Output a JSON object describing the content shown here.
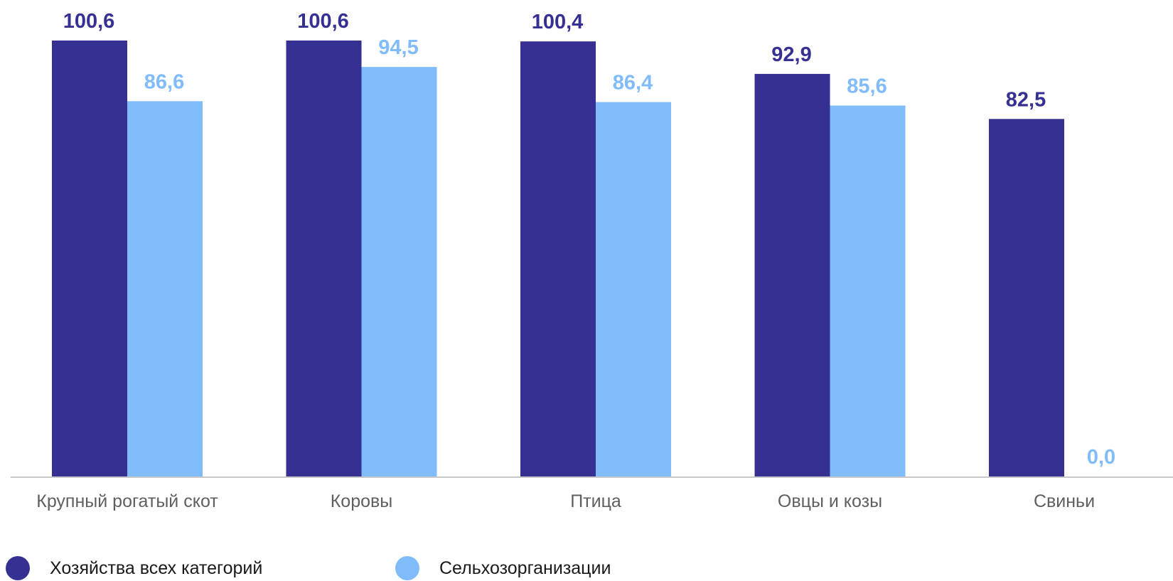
{
  "chart_data": {
    "type": "bar",
    "categories": [
      "Крупный рогатый скот",
      "Коровы",
      "Птица",
      "Овцы и козы",
      "Свиньи"
    ],
    "series": [
      {
        "name": "Хозяйства всех категорий",
        "values": [
          100.6,
          100.6,
          100.4,
          92.9,
          82.5
        ],
        "labels": [
          "100,6",
          "100,6",
          "100,4",
          "92,9",
          "82,5"
        ],
        "color": "#363093"
      },
      {
        "name": "Сельхозорганизации",
        "values": [
          86.6,
          94.5,
          86.4,
          85.6,
          0.0
        ],
        "labels": [
          "86,6",
          "94,5",
          "86,4",
          "85,6",
          "0,0"
        ],
        "color": "#80bcfa"
      }
    ],
    "title": "",
    "xlabel": "",
    "ylabel": "",
    "ylim": [
      0,
      100.6
    ],
    "grid": false,
    "legend_position": "bottom-left",
    "axis_color": "#c8c8c8",
    "category_label_color": "#5f5f5f"
  }
}
